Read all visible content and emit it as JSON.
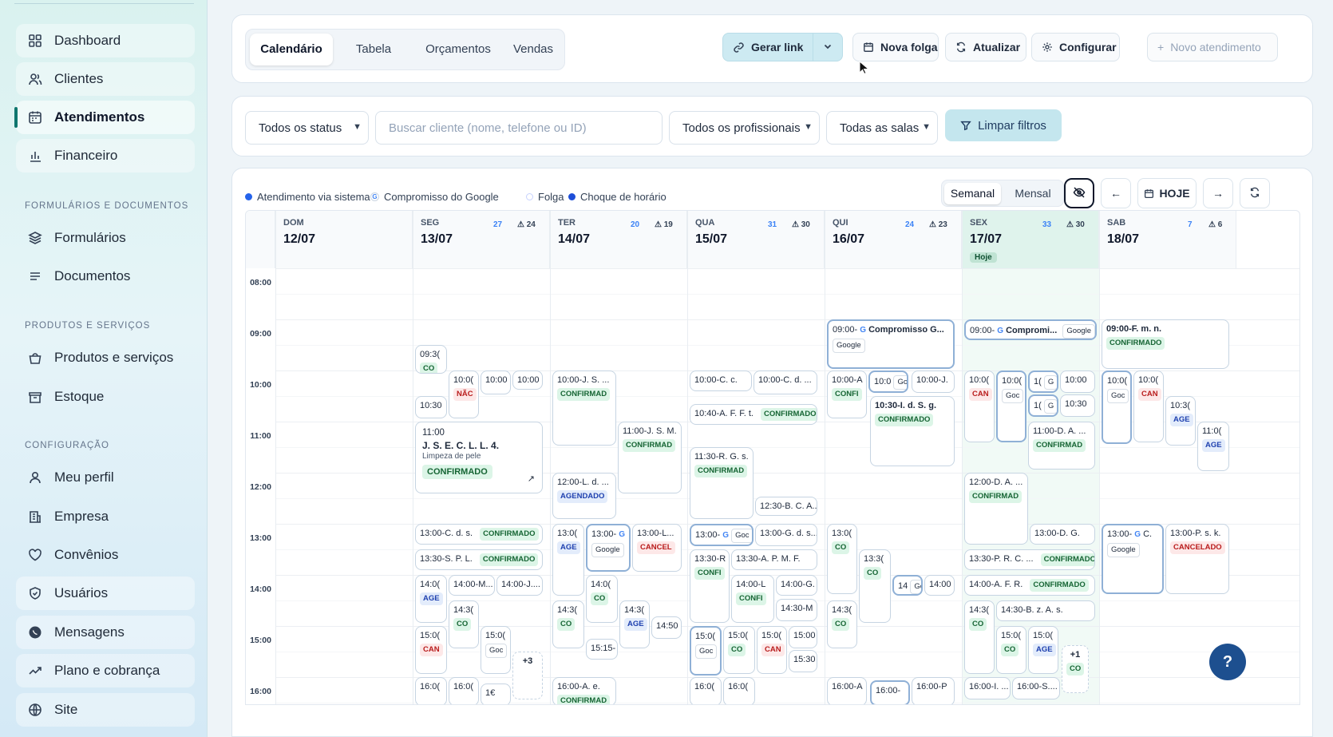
{
  "sidebar": {
    "items": [
      {
        "label": "Dashboard",
        "icon": "grid-icon"
      },
      {
        "label": "Clientes",
        "icon": "users-icon"
      },
      {
        "label": "Atendimentos",
        "icon": "calendar-icon"
      },
      {
        "label": "Financeiro",
        "icon": "bar-chart-icon"
      },
      {
        "label": "Formulários",
        "icon": "layers-icon"
      },
      {
        "label": "Documentos",
        "icon": "list-icon"
      },
      {
        "label": "Produtos e serviços",
        "icon": "basket-icon"
      },
      {
        "label": "Estoque",
        "icon": "box-icon"
      },
      {
        "label": "Meu perfil",
        "icon": "user-icon"
      },
      {
        "label": "Empresa",
        "icon": "building-icon"
      },
      {
        "label": "Convênios",
        "icon": "heart-icon"
      },
      {
        "label": "Usuários",
        "icon": "shield-icon"
      },
      {
        "label": "Mensagens",
        "icon": "whatsapp-icon"
      },
      {
        "label": "Plano e cobrança",
        "icon": "trend-icon"
      },
      {
        "label": "Site",
        "icon": "globe-icon"
      }
    ],
    "sections": {
      "forms": "FORMULÁRIOS E DOCUMENTOS",
      "products": "PRODUTOS E SERVIÇOS",
      "config": "CONFIGURAÇÃO"
    }
  },
  "tabs": [
    "Calendário",
    "Tabela",
    "Orçamentos",
    "Vendas"
  ],
  "toolbar": {
    "gerar_link": "Gerar link",
    "nova_folga": "Nova folga",
    "atualizar": "Atualizar",
    "configurar": "Configurar",
    "novo_atendimento": "Novo atendimento"
  },
  "filters": {
    "status": "Todos os status",
    "search_placeholder": "Buscar cliente (nome, telefone ou ID)",
    "profissionais": "Todos os profissionais",
    "salas": "Todas as salas",
    "limpar": "Limpar filtros"
  },
  "legend": [
    {
      "label": "Atendimento via sistema",
      "color": "#2563eb"
    },
    {
      "label": "Compromisso do Google",
      "color": "#4285f4"
    },
    {
      "label": "Folga",
      "color": "#c7d2fe"
    },
    {
      "label": "Choque de horário",
      "color": "#1d4ed8"
    }
  ],
  "view": {
    "semanal": "Semanal",
    "mensal": "Mensal",
    "hoje": "HOJE",
    "prev": "←",
    "next": "→"
  },
  "days": [
    {
      "name": "DOM",
      "date": "12/07",
      "count": "",
      "warn": ""
    },
    {
      "name": "SEG",
      "date": "13/07",
      "count": "27",
      "warn": "⚠ 24"
    },
    {
      "name": "TER",
      "date": "14/07",
      "count": "20",
      "warn": "⚠ 19"
    },
    {
      "name": "QUA",
      "date": "15/07",
      "count": "31",
      "warn": "⚠ 30"
    },
    {
      "name": "QUI",
      "date": "16/07",
      "count": "24",
      "warn": "⚠ 23"
    },
    {
      "name": "SEX",
      "date": "17/07",
      "count": "33",
      "warn": "⚠ 30",
      "today": "Hoje"
    },
    {
      "name": "SAB",
      "date": "18/07",
      "count": "7",
      "warn": "⚠ 6"
    }
  ],
  "hours": [
    "08:00",
    "09:00",
    "10:00",
    "11:00",
    "12:00",
    "13:00",
    "14:00",
    "15:00",
    "16:00"
  ],
  "events": {
    "e1": {
      "t": "09:3(",
      "b": "CO"
    },
    "e2": {
      "t": "10:0(",
      "b": "NÃC"
    },
    "e3": {
      "t": "10:00"
    },
    "e4": {
      "t": "10:00"
    },
    "e5": {
      "t": "10:30"
    },
    "e6": {
      "t": "11:00",
      "n": "J. S. E. C. L. L. 4.",
      "s": "Limpeza de pele",
      "b": "CONFIRMADO"
    },
    "e7": {
      "t": "13:00-C. d. s.",
      "b": "CONFIRMADO"
    },
    "e8": {
      "t": "13:30-S. P. L.",
      "b": "CONFIRMADO"
    },
    "e9": {
      "t": "14:0(",
      "b": "AGE"
    },
    "e10": {
      "t": "14:00-M..."
    },
    "e11": {
      "t": "14:00-J...."
    },
    "e12": {
      "t": "14:3(",
      "b": "CO"
    },
    "e13": {
      "t": "15:0(",
      "b": "CAN"
    },
    "e14": {
      "t": "15:0(",
      "b": "Goc"
    },
    "e15": {
      "t": "+3"
    },
    "e16": {
      "t": "16:0("
    },
    "e17": {
      "t": "16:0("
    },
    "e18": {
      "t": "1€"
    },
    "e19": {
      "t": "10:00-J. S. ...",
      "b": "CONFIRMAD"
    },
    "e20": {
      "t": "11:00-J. S. M.",
      "b": "CONFIRMAD"
    },
    "e21": {
      "t": "12:00-L. d. ...",
      "b": "AGENDADO"
    },
    "e22": {
      "t": "13:0(",
      "b": "AGE"
    },
    "e23": {
      "t": "13:00-",
      "b": "Google"
    },
    "e24": {
      "t": "13:00-L...",
      "b": "CANCEL"
    },
    "e25": {
      "t": "14:0(",
      "b": "CO"
    },
    "e26": {
      "t": "14:3(",
      "b": "CO"
    },
    "e27": {
      "t": "14:3(",
      "b": "AGE"
    },
    "e28": {
      "t": "14:50"
    },
    "e29": {
      "t": "15:15-"
    },
    "e30": {
      "t": "16:00-A. e.",
      "b": "CONFIRMAD"
    },
    "e31": {
      "t": "10:00-C. c."
    },
    "e32": {
      "t": "10:00-C. d. ..."
    },
    "e33": {
      "t": "10:40-A. F. F. t.",
      "b": "CONFIRMADO"
    },
    "e34": {
      "t": "11:30-R. G. s.",
      "b": "CONFIRMAD"
    },
    "e35": {
      "t": "12:30-B. C. A..."
    },
    "e36": {
      "t": "13:00-",
      "b": "Goc"
    },
    "e37": {
      "t": "13:00-G. d. s..."
    },
    "e38": {
      "t": "13:30-R",
      "b": "CONFI"
    },
    "e39": {
      "t": "13:30-A. P. M. F."
    },
    "e40": {
      "t": "14:00-L",
      "b": "CONFI"
    },
    "e41": {
      "t": "14:00-G."
    },
    "e42": {
      "t": "14:30-M"
    },
    "e43": {
      "t": "15:0(",
      "b": "Goc"
    },
    "e44": {
      "t": "15:0(",
      "b": "CO"
    },
    "e45": {
      "t": "15:0(",
      "b": "CAN"
    },
    "e46": {
      "t": "15:00"
    },
    "e47": {
      "t": "15:30"
    },
    "e48": {
      "t": "16:0("
    },
    "e49": {
      "t": "16:0("
    },
    "e50": {
      "t": "09:00-",
      "n": "Compromisso G...",
      "b": "Google"
    },
    "e51": {
      "t": "10:00-A",
      "b": "CONFI"
    },
    "e52": {
      "t": "10:0",
      "b": "Go"
    },
    "e53": {
      "t": "10:00-J."
    },
    "e54": {
      "t": "10:30-I. d. S. g.",
      "b": "CONFIRMADO"
    },
    "e55": {
      "t": "13:0(",
      "b": "CO"
    },
    "e56": {
      "t": "13:3(",
      "b": "CO"
    },
    "e57": {
      "t": "14",
      "b": "Go"
    },
    "e58": {
      "t": "14:00"
    },
    "e59": {
      "t": "14:3(",
      "b": "CO"
    },
    "e60": {
      "t": "16:00-A"
    },
    "e61": {
      "t": "16:00-"
    },
    "e62": {
      "t": "16:00-P"
    },
    "e63": {
      "t": "09:00-",
      "n": "Compromi...",
      "b": "Google"
    },
    "e64": {
      "t": "10:0(",
      "b": "CAN"
    },
    "e65": {
      "t": "10:0(",
      "b": "Goc"
    },
    "e66": {
      "t": "1(",
      "b": "G"
    },
    "e67": {
      "t": "10:00"
    },
    "e68": {
      "t": "1(",
      "b": "G"
    },
    "e69": {
      "t": "10:30"
    },
    "e70": {
      "t": "11:00-D. A. ...",
      "b": "CONFIRMAD"
    },
    "e71": {
      "t": "12:00-D. A. ...",
      "b": "CONFIRMAD"
    },
    "e72": {
      "t": "13:00-D. G."
    },
    "e73": {
      "t": "13:30-P. R. C. ...",
      "b": "CONFIRMADO"
    },
    "e74": {
      "t": "14:00-A. F. R.",
      "b": "CONFIRMADO"
    },
    "e75": {
      "t": "14:3(",
      "b": "CO"
    },
    "e76": {
      "t": "14:30-B. z. A. s."
    },
    "e77": {
      "t": "15:0(",
      "b": "CO"
    },
    "e78": {
      "t": "15:0(",
      "b": "AGE"
    },
    "e79": {
      "t": "+1",
      "b": "CO"
    },
    "e80": {
      "t": "16:00-I. ..."
    },
    "e81": {
      "t": "16:00-S...."
    },
    "e82": {
      "t": "09:00-F. m. n.",
      "b": "CONFIRMADO"
    },
    "e83": {
      "t": "10:0(",
      "b": "Goc"
    },
    "e84": {
      "t": "10:0(",
      "b": "CAN"
    },
    "e85": {
      "t": "10:3(",
      "b": "AGE"
    },
    "e86": {
      "t": "11:0(",
      "b": "AGE"
    },
    "e87": {
      "t": "13:00-",
      "n": "C.",
      "b": "Google"
    },
    "e88": {
      "t": "13:00-P. s. k.",
      "b": "CANCELADO"
    }
  },
  "help": "?"
}
